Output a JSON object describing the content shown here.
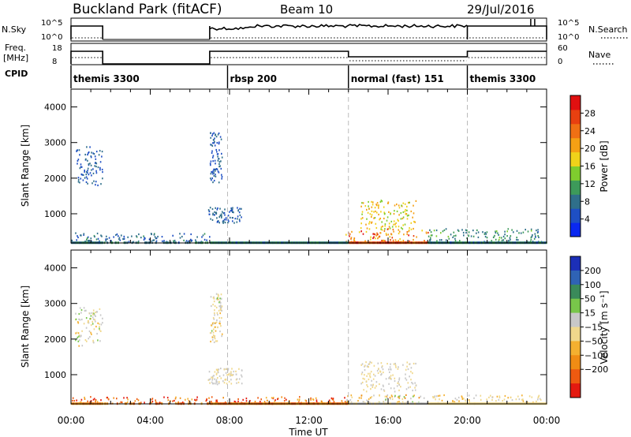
{
  "header": {
    "station": "Buckland Park (fitACF)",
    "beam": "Beam 10",
    "date": "29/Jul/2016"
  },
  "status_panel": {
    "left_label_1": "N.Sky",
    "left_label_2a": "Freq.",
    "left_label_2b": "[MHz]",
    "cpid_label": "CPID",
    "right_label_1": "N.Search",
    "right_label_2": "Nave",
    "nsky_ticks": [
      "10^5",
      "10^0"
    ],
    "nsearch_ticks": [
      "10^5",
      "10^0"
    ],
    "freq_ticks": [
      "18",
      "8"
    ],
    "nave_ticks": [
      "60",
      "0"
    ],
    "cpid_segments": [
      {
        "start_hour": 0.0,
        "end_hour": 7.9,
        "label": "themis 3300"
      },
      {
        "start_hour": 7.9,
        "end_hour": 14.0,
        "label": "rbsp 200"
      },
      {
        "start_hour": 14.0,
        "end_hour": 20.0,
        "label": "normal (fast) 151"
      },
      {
        "start_hour": 20.0,
        "end_hour": 24.0,
        "label": "themis 3300"
      }
    ]
  },
  "x_axis": {
    "label": "Time UT",
    "range_hours": [
      0,
      24
    ],
    "ticks": [
      {
        "hour": 0,
        "label": "00:00"
      },
      {
        "hour": 4,
        "label": "04:00"
      },
      {
        "hour": 8,
        "label": "08:00"
      },
      {
        "hour": 12,
        "label": "12:00"
      },
      {
        "hour": 16,
        "label": "16:00"
      },
      {
        "hour": 20,
        "label": "20:00"
      },
      {
        "hour": 24,
        "label": "00:00"
      }
    ]
  },
  "chart_data": [
    {
      "type": "heatmap",
      "panel": "power",
      "ylabel": "Slant Range [km]",
      "ylim": [
        180,
        4500
      ],
      "yticks": [
        1000,
        2000,
        3000,
        4000
      ],
      "colorbar_label": "Power [dB]",
      "colorbar_range": [
        0,
        32
      ],
      "colorbar_ticks": [
        4,
        8,
        12,
        16,
        20,
        24,
        28
      ],
      "colorbar_colors": [
        "#0a28f0",
        "#1e4fc4",
        "#2f6f8a",
        "#3d9a5a",
        "#7fcc2e",
        "#f0d21a",
        "#f5a014",
        "#f07014",
        "#e84010",
        "#e01010"
      ],
      "scatter_regions": [
        {
          "t": [
            0.2,
            1.6
          ],
          "r": [
            1800,
            2900
          ],
          "v": [
            4,
            8
          ]
        },
        {
          "t": [
            7.0,
            7.6
          ],
          "r": [
            1900,
            3300
          ],
          "v": [
            4,
            9
          ]
        },
        {
          "t": [
            6.9,
            8.6
          ],
          "r": [
            750,
            1200
          ],
          "v": [
            4,
            9
          ]
        },
        {
          "t": [
            14.6,
            17.4
          ],
          "r": [
            550,
            1400
          ],
          "v": [
            14,
            22
          ]
        },
        {
          "t": [
            13.8,
            18.0
          ],
          "r": [
            200,
            600
          ],
          "v": [
            16,
            30
          ]
        },
        {
          "t": [
            18.0,
            23.8
          ],
          "r": [
            200,
            600
          ],
          "v": [
            6,
            14
          ]
        },
        {
          "t": [
            0.0,
            7.0
          ],
          "r": [
            200,
            480
          ],
          "v": [
            4,
            10
          ]
        }
      ]
    },
    {
      "type": "heatmap",
      "panel": "velocity",
      "ylabel": "Slant Range [km]",
      "ylim": [
        180,
        4500
      ],
      "yticks": [
        1000,
        2000,
        3000,
        4000
      ],
      "colorbar_label": "Velocity [m s⁻¹]",
      "colorbar_ticks": [
        "200",
        "100",
        "50",
        "15",
        "−15",
        "−50",
        "−100",
        "−200"
      ],
      "colorbar_colors": [
        "#1c2fb8",
        "#2f63b5",
        "#3a8a5a",
        "#78c64a",
        "#c8c8c8",
        "#f0d88c",
        "#f4b030",
        "#f08c14",
        "#ee5a10",
        "#e41a10"
      ],
      "scatter_regions": [
        {
          "t": [
            0.2,
            1.6
          ],
          "r": [
            1800,
            2900
          ],
          "v": [
            -50,
            50
          ]
        },
        {
          "t": [
            7.0,
            7.6
          ],
          "r": [
            1900,
            3300
          ],
          "v": [
            -50,
            50
          ]
        },
        {
          "t": [
            6.9,
            8.6
          ],
          "r": [
            750,
            1200
          ],
          "v": [
            -30,
            30
          ]
        },
        {
          "t": [
            14.6,
            17.4
          ],
          "r": [
            550,
            1400
          ],
          "v": [
            -10,
            10
          ]
        },
        {
          "t": [
            13.8,
            18.0
          ],
          "r": [
            200,
            450
          ],
          "v": [
            -100,
            60
          ]
        },
        {
          "t": [
            0.0,
            14.0
          ],
          "r": [
            200,
            400
          ],
          "v": [
            -200,
            -60
          ]
        },
        {
          "t": [
            18.0,
            23.8
          ],
          "r": [
            200,
            450
          ],
          "v": [
            -60,
            20
          ]
        }
      ]
    }
  ]
}
